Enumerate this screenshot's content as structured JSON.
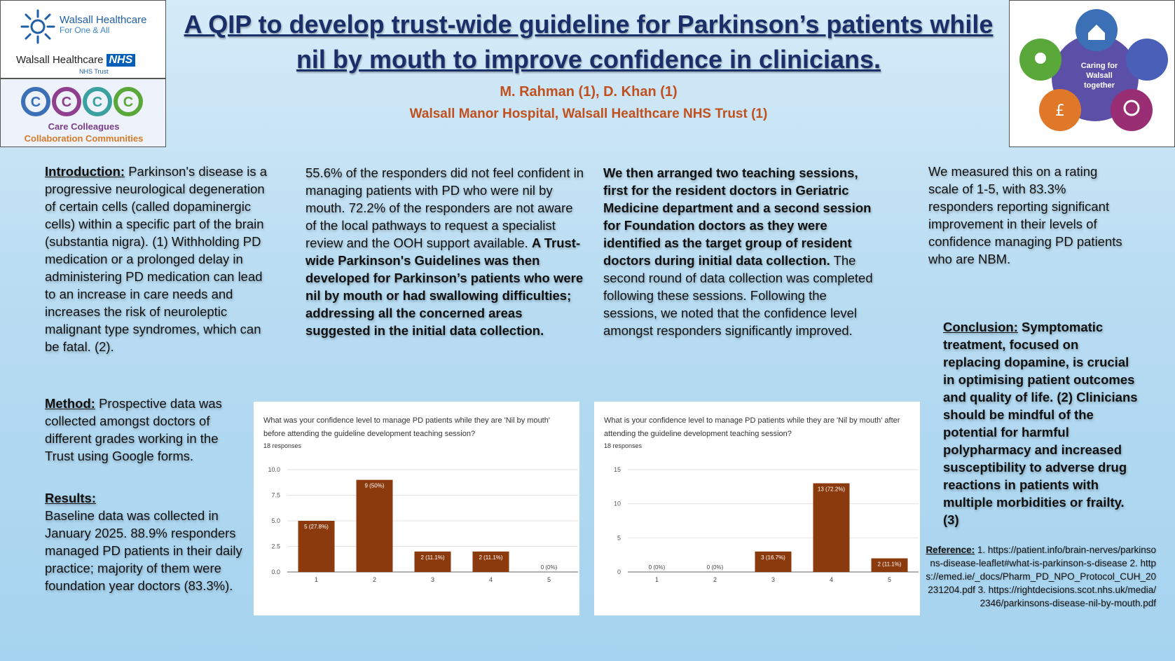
{
  "logos": {
    "walsall_brand": "Walsall Healthcare",
    "walsall_tagline": "For One & All",
    "walsall_name": "Walsall Healthcare",
    "nhs_badge": "NHS",
    "nhs_trust": "NHS Trust",
    "cccc_line1": "Care Colleagues",
    "cccc_line2": "Collaboration Communities",
    "caring_center": "Caring for Walsall together"
  },
  "title": "A QIP to develop trust-wide guideline for Parkinson’s patients while nil by mouth to improve confidence in clinicians.",
  "authors": "M. Rahman (1), D. Khan (1)",
  "affiliation": "Walsall Manor Hospital, Walsall Healthcare NHS Trust (1)",
  "intro": {
    "label": "Introduction:",
    "text": " Parkinson's disease is a progressive neurological degeneration of certain cells (called dopaminergic cells) within a specific part of the brain (substantia nigra). (1) Withholding PD medication or a prolonged delay in administering PD medication can lead to an increase in care needs and increases the risk of neuroleptic malignant type syndromes, which can be fatal. (2)."
  },
  "method": {
    "label": "Method:",
    "text": " Prospective data was collected amongst doctors of different grades working in the Trust using Google forms."
  },
  "results": {
    "label": "Results:",
    "text": "Baseline data was collected in January 2025. 88.9% responders managed PD patients in their daily practice; majority of them were foundation year doctors (83.3%)."
  },
  "col2": {
    "text_a": "55.6% of the responders did not feel confident in managing patients with PD who were nil by mouth. 72.2% of the responders are not aware of the local pathways to request a specialist review and the OOH support available. ",
    "text_b": "A Trust-wide Parkinson's Guidelines was then developed for Parkinson’s patients who were nil by mouth or had swallowing difficulties; addressing all the concerned areas suggested in the initial data collection."
  },
  "col3": {
    "text_a": "We then arranged two teaching sessions, first for the resident doctors in Geriatric Medicine department and a second session for Foundation doctors as they were identified as the target group of resident doctors during initial data collection.",
    "text_b": " The second round of data collection was completed following these sessions. Following the sessions, we noted that the confidence level amongst responders significantly improved."
  },
  "col4": {
    "text": "We measured this on a rating scale of 1-5, with 83.3% responders reporting significant improvement in their levels of confidence managing PD patients who are NBM."
  },
  "conclusion": {
    "label": "Conclusion:",
    "text": " Symptomatic treatment, focused on replacing dopamine, is crucial in optimising patient outcomes and quality of life. (2) Clinicians should be mindful of the potential for harmful polypharmacy and increased susceptibility to adverse drug reactions in patients with multiple morbidities or frailty.  (3)"
  },
  "references": {
    "label": "Reference:",
    "text": " 1. https://patient.info/brain-nerves/parkinsons-disease-leaflet#what-is-parkinson-s-disease 2. https://emed.ie/_docs/Pharm_PD_NPO_Protocol_CUH_20231204.pdf 3. https://rightdecisions.scot.nhs.uk/media/2346/parkinsons-disease-nil-by-mouth.pdf"
  },
  "bar_color": "#8b3a0e",
  "chart_data": [
    {
      "type": "bar",
      "title": "What was your confidence level to manage PD patients while they are 'Nil by mouth' before attending the guideline development teaching session?",
      "subtitle": "18 responses",
      "categories": [
        "1",
        "2",
        "3",
        "4",
        "5"
      ],
      "values": [
        5,
        9,
        2,
        2,
        0
      ],
      "data_labels": [
        "5 (27.8%)",
        "9 (50%)",
        "2 (11.1%)",
        "2 (11.1%)",
        "0 (0%)"
      ],
      "yticks": [
        "0.0",
        "2.5",
        "5.0",
        "7.5",
        "10.0"
      ],
      "ylim": [
        0,
        10
      ],
      "grid": true
    },
    {
      "type": "bar",
      "title": "What is your confidence level to manage PD patients while they are 'Nil by mouth' after attending the guideline development teaching session?",
      "subtitle": "18 responses",
      "categories": [
        "1",
        "2",
        "3",
        "4",
        "5"
      ],
      "values": [
        0,
        0,
        3,
        13,
        2
      ],
      "data_labels": [
        "0 (0%)",
        "0 (0%)",
        "3 (16.7%)",
        "13 (72.2%)",
        "2 (11.1%)"
      ],
      "yticks": [
        "0",
        "5",
        "10",
        "15"
      ],
      "ylim": [
        0,
        15
      ],
      "grid": true
    }
  ]
}
